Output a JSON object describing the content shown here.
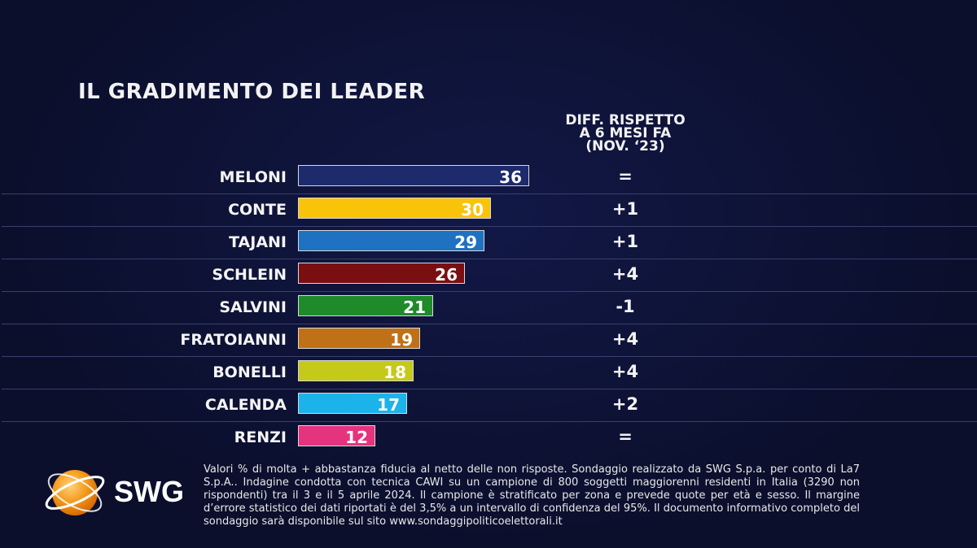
{
  "title": "IL GRADIMENTO DEI LEADER",
  "diff_header": [
    "DIFF. RISPETTO",
    "A 6 MESI FA",
    "(NOV. ‘23)"
  ],
  "colors": {
    "MELONI": "#1d2a6b",
    "CONTE": "#f9c30a",
    "TAJANI": "#1f72c2",
    "SCHLEIN": "#7a0f12",
    "SALVINI": "#1f8a2a",
    "FRATOIANNI": "#c07016",
    "BONELLI": "#c5c91a",
    "CALENDA": "#1cb3ea",
    "RENZI": "#e6337d"
  },
  "chart_data": {
    "type": "bar",
    "orientation": "horizontal",
    "categories": [
      "MELONI",
      "CONTE",
      "TAJANI",
      "SCHLEIN",
      "SALVINI",
      "FRATOIANNI",
      "BONELLI",
      "CALENDA",
      "RENZI"
    ],
    "values": [
      36,
      30,
      29,
      26,
      21,
      19,
      18,
      17,
      12
    ],
    "diff": [
      "=",
      "+1",
      "+1",
      "+4",
      "-1",
      "+4",
      "+4",
      "+2",
      "="
    ],
    "title": "IL GRADIMENTO DEI LEADER",
    "xlim": [
      0,
      100
    ]
  },
  "logo": {
    "text": "SWG"
  },
  "footnote": "Valori % di molta + abbastanza fiducia al netto delle non risposte. Sondaggio realizzato da SWG S.p.a. per conto di La7 S.p.A.. Indagine condotta con tecnica CAWI su un campione di 800 soggetti maggiorenni residenti in Italia (3290 non rispondenti) tra il 3 e il 5 aprile 2024. Il campione è stratificato per zona e prevede quote per età e sesso. Il margine d’errore statistico dei dati riportati è del 3,5% a un intervallo di confidenza del 95%. Il documento informativo completo del sondaggio sarà disponibile sul sito www.sondaggipoliticoelettorali.it"
}
